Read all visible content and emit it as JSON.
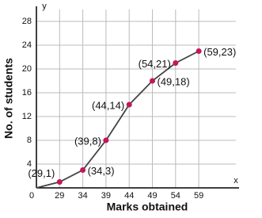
{
  "chart_data": {
    "type": "line",
    "x_axis_name": "x",
    "y_axis_name": "y",
    "x_label": "Marks obtained",
    "y_label": "No. of students",
    "x": [
      24,
      29,
      34,
      39,
      44,
      49,
      54,
      59
    ],
    "series": [
      {
        "color": "#c2185b",
        "line_color": "#444444",
        "values": [
          0,
          1,
          3,
          8,
          14,
          18,
          21,
          23
        ],
        "value_labels": [
          null,
          "(29,1)",
          "(34,3)",
          "(39,8)",
          "(44,14)",
          "(49,18)",
          "(54,21)",
          "(59,23)"
        ]
      }
    ],
    "xlim": [
      24,
      67
    ],
    "ylim": [
      0,
      30
    ],
    "xticks": [
      {
        "value": 24,
        "label": "0"
      },
      29,
      34,
      39,
      44,
      49,
      54,
      59
    ],
    "yticks": [
      4,
      8,
      12,
      16,
      20,
      24,
      28
    ],
    "grid": true
  }
}
